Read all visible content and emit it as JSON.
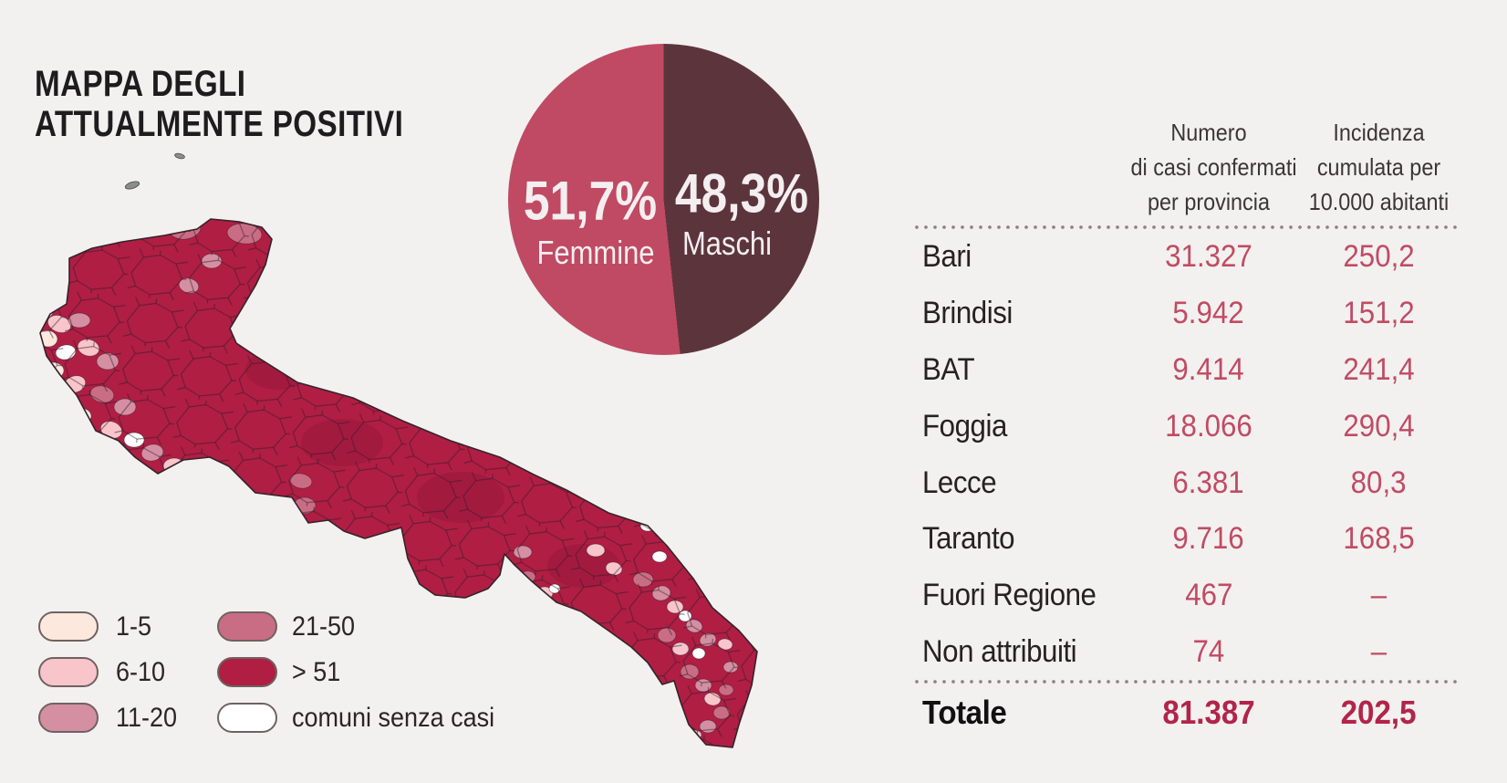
{
  "page_title": {
    "line1": "MAPPA DEGLI",
    "line2": "ATTUALMENTE POSITIVI"
  },
  "background": "#f2f1ef",
  "chart_data": [
    {
      "type": "pie",
      "name": "gender-split",
      "slices": [
        {
          "label": "Femmine",
          "value_pct": 51.7,
          "display": "51,7%",
          "color": "#c04a63"
        },
        {
          "label": "Maschi",
          "value_pct": 48.3,
          "display": "48,3%",
          "color": "#5c353c"
        }
      ],
      "legend_position": "inside",
      "text_color": "#f4eef0"
    },
    {
      "type": "choropleth",
      "name": "attualmente-positivi-per-comune",
      "region": "Puglia",
      "base_color": "#b01e44",
      "legend": [
        {
          "label": "1-5",
          "color": "#fce8dd"
        },
        {
          "label": "6-10",
          "color": "#f8c5cb"
        },
        {
          "label": "11-20",
          "color": "#d48fa2"
        },
        {
          "label": "21-50",
          "color": "#c96d84"
        },
        {
          "label": "> 51",
          "color": "#b01e44"
        },
        {
          "label": "comuni senza casi",
          "color": "#ffffff"
        }
      ]
    },
    {
      "type": "table",
      "name": "casi-per-provincia",
      "columns": [
        {
          "key": "province",
          "lines": [
            "",
            "",
            ""
          ]
        },
        {
          "key": "cases",
          "lines": [
            "Numero",
            "di casi confermati",
            "per provincia"
          ]
        },
        {
          "key": "incidence",
          "lines": [
            "Incidenza",
            "cumulata per",
            "10.000 abitanti"
          ]
        }
      ],
      "rows": [
        {
          "province": "Bari",
          "cases": "31.327",
          "incidence": "250,2"
        },
        {
          "province": "Brindisi",
          "cases": "5.942",
          "incidence": "151,2"
        },
        {
          "province": "BAT",
          "cases": "9.414",
          "incidence": "241,4"
        },
        {
          "province": "Foggia",
          "cases": "18.066",
          "incidence": "290,4"
        },
        {
          "province": "Lecce",
          "cases": "6.381",
          "incidence": "80,3"
        },
        {
          "province": "Taranto",
          "cases": "9.716",
          "incidence": "168,5"
        },
        {
          "province": "Fuori Regione",
          "cases": "467",
          "incidence": "–"
        },
        {
          "province": "Non attribuiti",
          "cases": "74",
          "incidence": "–"
        }
      ],
      "total": {
        "label": "Totale",
        "cases": "81.387",
        "incidence": "202,5"
      }
    }
  ]
}
